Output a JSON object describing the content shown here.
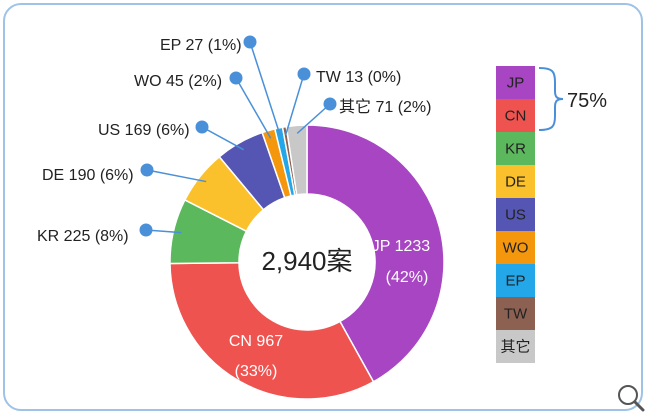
{
  "chart_data": {
    "type": "pie",
    "variant": "donut",
    "center_label": "2,940案",
    "colors": {
      "JP": "#a745c2",
      "CN": "#ee5350",
      "KR": "#5cb85c",
      "DE": "#fbc12d",
      "US": "#5556b4",
      "WO": "#f4970d",
      "EP": "#23a7e8",
      "TW": "#8d6152",
      "其它": "#c8c8c8"
    },
    "slices": [
      {
        "name": "JP",
        "value": 1233,
        "label": "JP 1233",
        "pct_label": "(42%)"
      },
      {
        "name": "CN",
        "value": 967,
        "label": "CN 967",
        "pct_label": "(33%)"
      },
      {
        "name": "KR",
        "value": 225,
        "label": "KR 225 (8%)"
      },
      {
        "name": "DE",
        "value": 190,
        "label": "DE 190 (6%)"
      },
      {
        "name": "US",
        "value": 169,
        "label": "US 169 (6%)"
      },
      {
        "name": "WO",
        "value": 45,
        "label": "WO 45 (2%)"
      },
      {
        "name": "EP",
        "value": 27,
        "label": "EP 27 (1%)"
      },
      {
        "name": "TW",
        "value": 13,
        "label": "TW 13 (0%)"
      },
      {
        "name": "其它",
        "value": 71,
        "label": "其它 71 (2%)"
      }
    ],
    "legend": {
      "placement": "right",
      "items": [
        "JP",
        "CN",
        "KR",
        "DE",
        "US",
        "WO",
        "EP",
        "TW",
        "其它"
      ],
      "bracket_label": "75%",
      "bracket_items": [
        "JP",
        "CN"
      ]
    }
  },
  "zoom_icon": "magnifier-icon"
}
